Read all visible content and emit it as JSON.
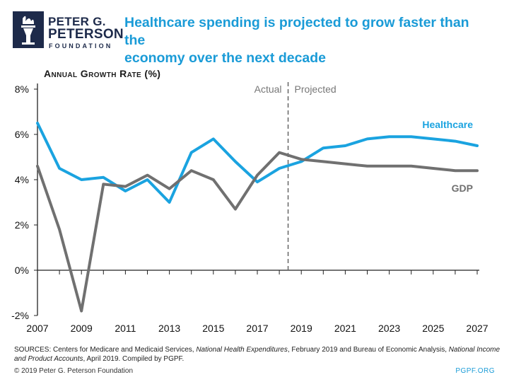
{
  "brand": {
    "name_line1": "PETER G.",
    "name_line2": "PETERSON",
    "name_line3": "FOUNDATION"
  },
  "header": {
    "title_line1": "Healthcare spending is projected to grow faster than the",
    "title_line2": "economy over the next decade"
  },
  "footer": {
    "sources_a": "SOURCES: Centers for Medicare and Medicaid Services, ",
    "sources_b": "National Health Expenditures",
    "sources_c": ", February 2019 and Bureau of Economic Analysis, ",
    "sources_d": "National Income and Product Accounts",
    "sources_e": ", April 2019. Compiled by PGPF.",
    "copyright": "© 2019 Peter G. Peterson Foundation",
    "site": "PGPF.ORG"
  },
  "colors": {
    "healthcare": "#1aa3e0",
    "gdp": "#707070",
    "axis": "#222222",
    "divider": "#666666"
  },
  "chart_data": {
    "type": "line",
    "title": "Healthcare spending is projected to grow faster than the economy over the next decade",
    "ylabel": "Annual Growth Rate (%)",
    "xlabel": "",
    "x": [
      2007,
      2008,
      2009,
      2010,
      2011,
      2012,
      2013,
      2014,
      2015,
      2016,
      2017,
      2018,
      2019,
      2020,
      2021,
      2022,
      2023,
      2024,
      2025,
      2026,
      2027
    ],
    "xlim": [
      2007,
      2027
    ],
    "ylim": [
      -2,
      8
    ],
    "x_ticks": [
      2007,
      2009,
      2011,
      2013,
      2015,
      2017,
      2019,
      2021,
      2023,
      2025,
      2027
    ],
    "y_ticks": [
      -2,
      0,
      2,
      4,
      6,
      8
    ],
    "y_tick_labels": [
      "-2%",
      "0%",
      "2%",
      "4%",
      "6%",
      "8%"
    ],
    "series": [
      {
        "name": "Healthcare",
        "values": [
          6.5,
          4.5,
          4.0,
          4.1,
          3.5,
          4.0,
          3.0,
          5.2,
          5.8,
          4.8,
          3.9,
          4.5,
          4.8,
          5.4,
          5.5,
          5.8,
          5.9,
          5.9,
          5.8,
          5.7,
          5.5
        ]
      },
      {
        "name": "GDP",
        "values": [
          4.6,
          1.8,
          -1.8,
          3.8,
          3.7,
          4.2,
          3.6,
          4.4,
          4.0,
          2.7,
          4.2,
          5.2,
          4.9,
          4.8,
          4.7,
          4.6,
          4.6,
          4.6,
          4.5,
          4.4,
          4.4
        ]
      }
    ],
    "divider_x": 2018.4,
    "annotations": {
      "actual": "Actual",
      "projected": "Projected"
    },
    "grid": false,
    "legend": "inline labels at right"
  }
}
